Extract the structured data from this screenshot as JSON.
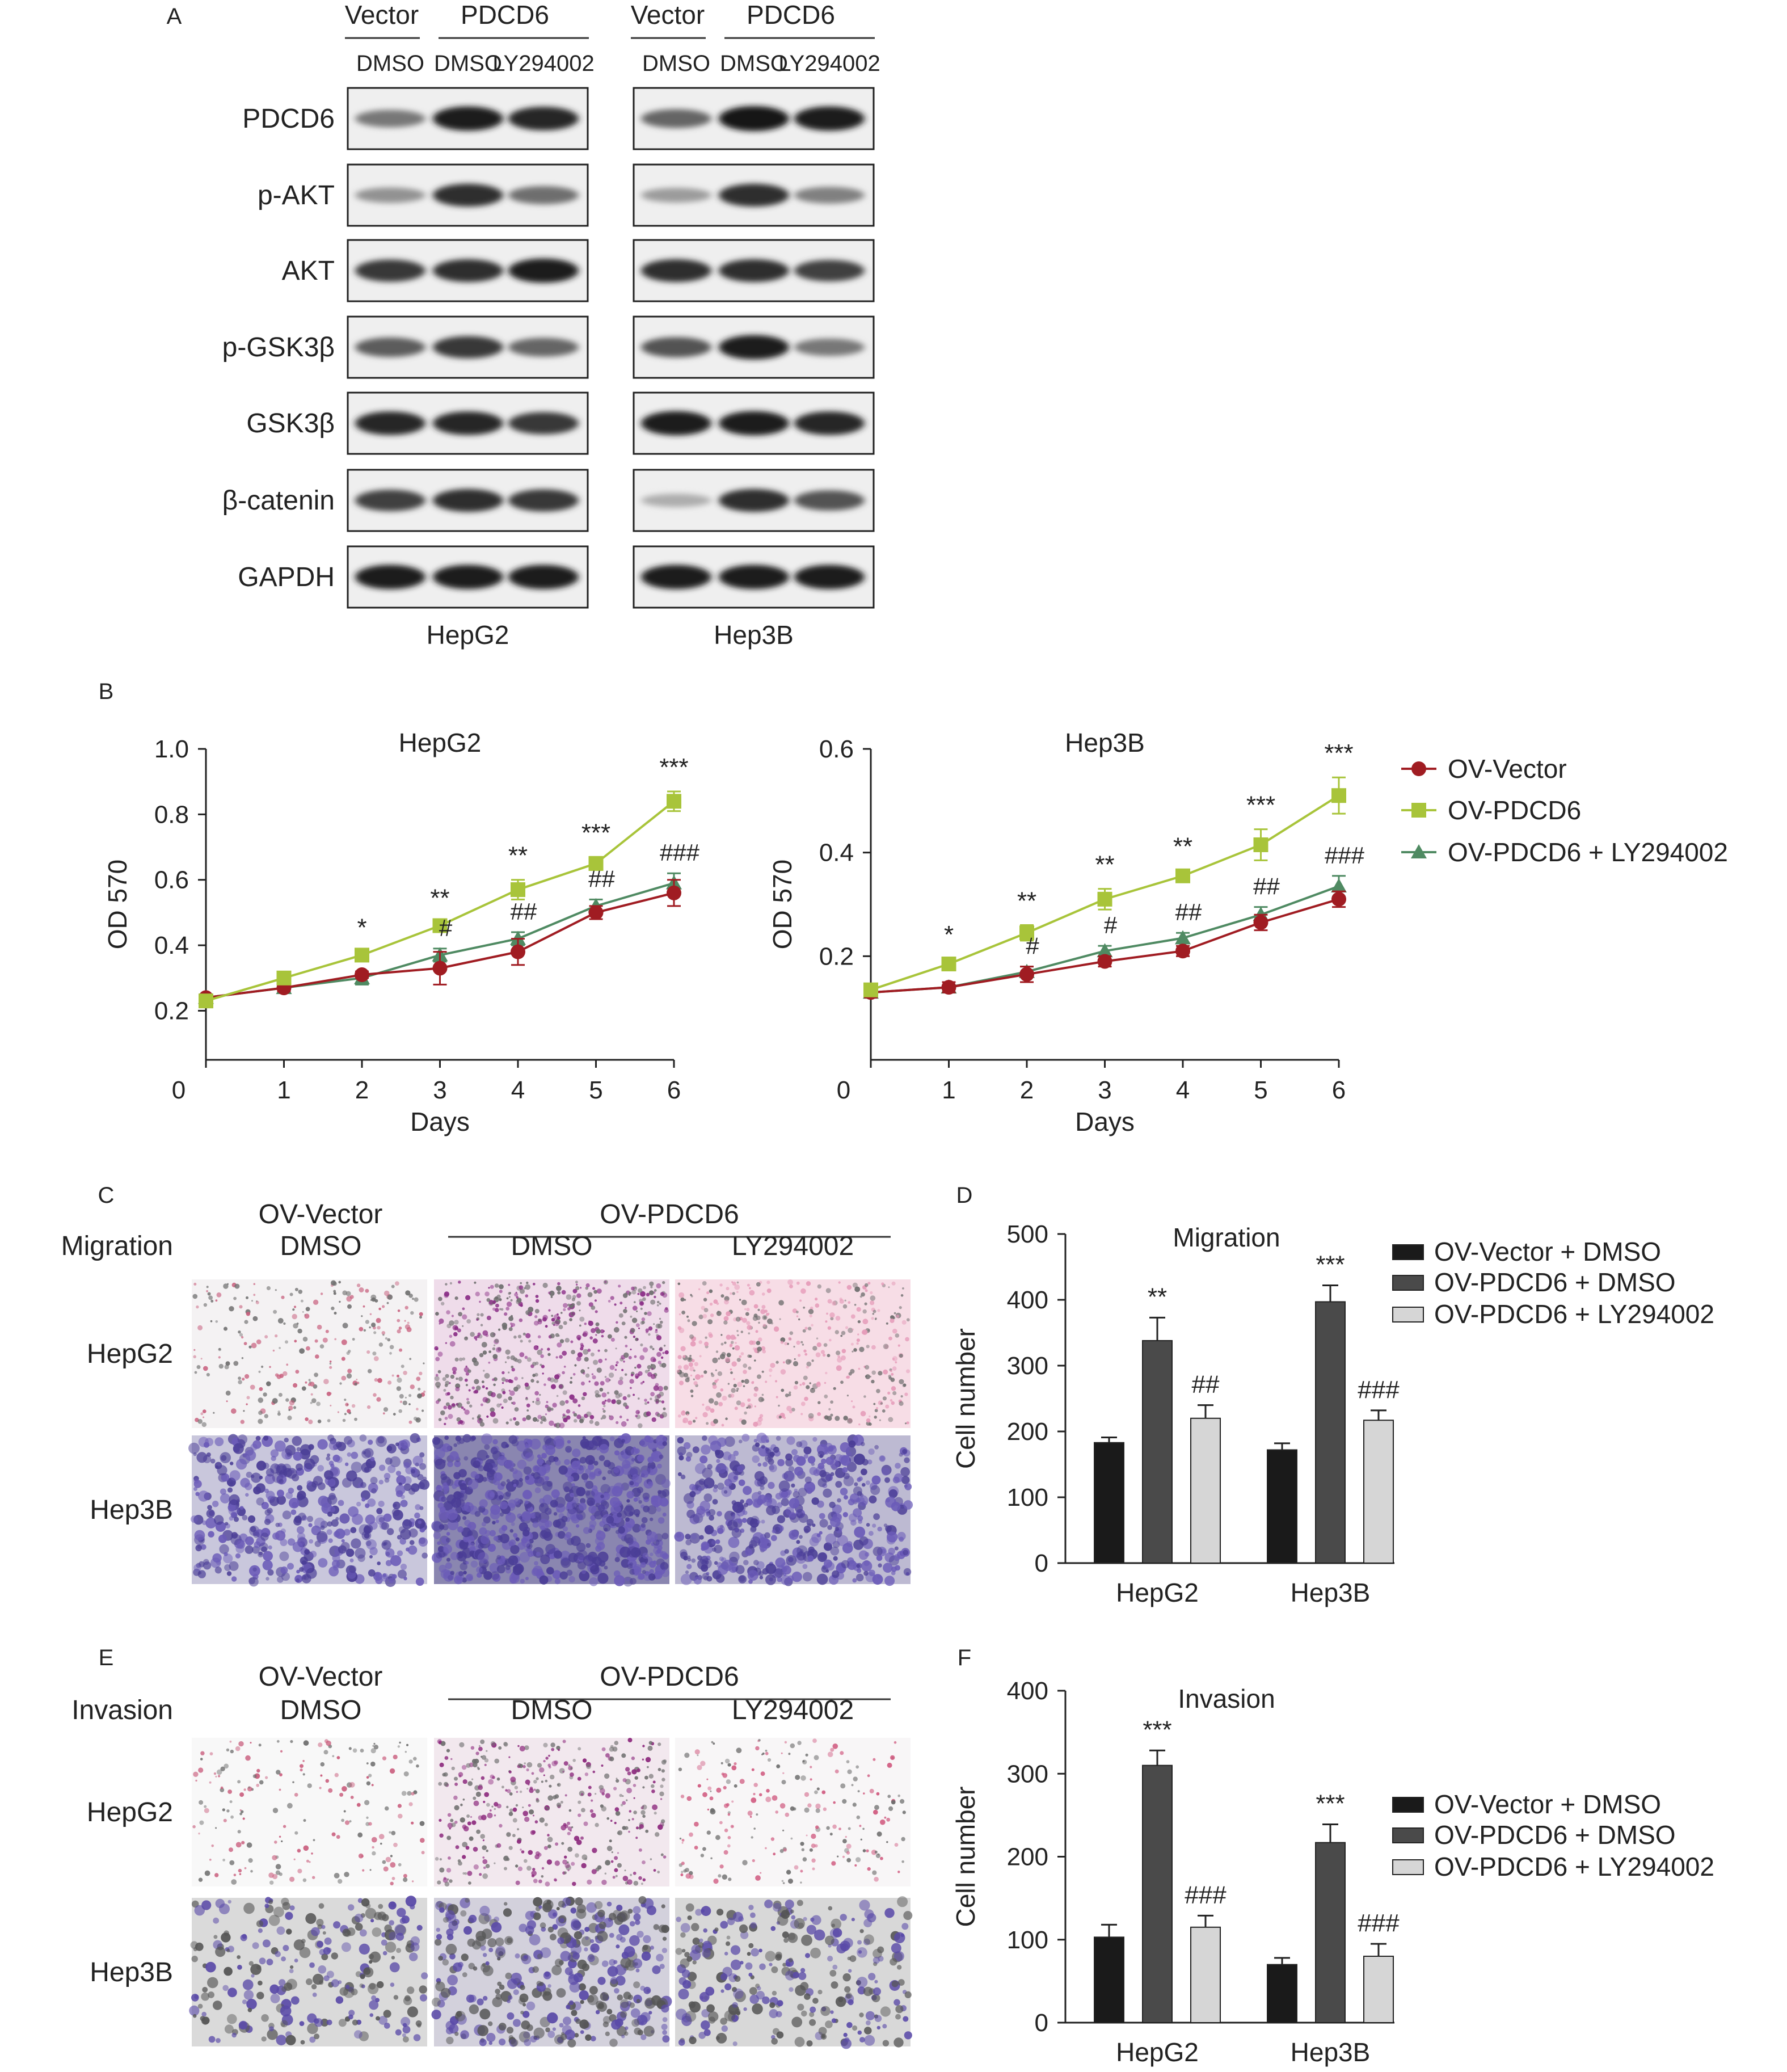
{
  "panels": {
    "A": "A",
    "B": "B",
    "C": "C",
    "D": "D",
    "E": "E",
    "F": "F"
  },
  "western": {
    "groups": [
      {
        "vector": "Vector",
        "pdcd6": "PDCD6",
        "lanes": [
          "DMSO",
          "DMSO",
          "LY294002"
        ],
        "cell": "HepG2",
        "intensity": {
          "PDCD6": [
            0.45,
            0.95,
            0.9
          ],
          "p-AKT": [
            0.3,
            0.85,
            0.5
          ],
          "AKT": [
            0.8,
            0.85,
            0.95
          ],
          "p-GSK3β": [
            0.6,
            0.8,
            0.55
          ],
          "GSK3β": [
            0.9,
            0.9,
            0.8
          ],
          "β-catenin": [
            0.75,
            0.85,
            0.8
          ],
          "GAPDH": [
            0.95,
            0.95,
            0.95
          ]
        }
      },
      {
        "vector": "Vector",
        "pdcd6": "PDCD6",
        "lanes": [
          "DMSO",
          "DMSO",
          "LY294002"
        ],
        "cell": "Hep3B",
        "intensity": {
          "PDCD6": [
            0.55,
            1.0,
            0.95
          ],
          "p-AKT": [
            0.25,
            0.85,
            0.4
          ],
          "AKT": [
            0.85,
            0.85,
            0.75
          ],
          "p-GSK3β": [
            0.65,
            0.95,
            0.45
          ],
          "GSK3β": [
            0.95,
            0.95,
            0.9
          ],
          "β-catenin": [
            0.15,
            0.85,
            0.65
          ],
          "GAPDH": [
            0.95,
            0.95,
            0.95
          ]
        }
      }
    ],
    "proteins": [
      "PDCD6",
      "p-AKT",
      "AKT",
      "p-GSK3β",
      "GSK3β",
      "β-catenin",
      "GAPDH"
    ]
  },
  "chart_data": [
    {
      "type": "line",
      "title": "HepG2",
      "xlabel": "Days",
      "ylabel": "OD 570",
      "x": [
        0,
        1,
        2,
        3,
        4,
        5,
        6
      ],
      "xticks": [
        "0",
        "1",
        "2",
        "3",
        "4",
        "5",
        "6"
      ],
      "yticks": [
        "0.2",
        "0.4",
        "0.6",
        "0.8",
        "1.0"
      ],
      "ylim": [
        0.05,
        1.0
      ],
      "series": [
        {
          "name": "OV-Vector",
          "color": "#a01c22",
          "marker": "circle",
          "values": [
            0.24,
            0.27,
            0.31,
            0.33,
            0.38,
            0.5,
            0.56
          ],
          "err": [
            0.01,
            0.01,
            0.01,
            0.05,
            0.04,
            0.02,
            0.04
          ]
        },
        {
          "name": "OV-PDCD6",
          "color": "#a8c43a",
          "marker": "square",
          "values": [
            0.23,
            0.3,
            0.37,
            0.46,
            0.57,
            0.65,
            0.84
          ],
          "err": [
            0.01,
            0.01,
            0.01,
            0.01,
            0.03,
            0.02,
            0.03
          ]
        },
        {
          "name": "OV-PDCD6 + LY294002",
          "color": "#4f8a62",
          "marker": "triangle",
          "values": [
            0.24,
            0.27,
            0.3,
            0.37,
            0.42,
            0.52,
            0.59
          ],
          "err": [
            0.01,
            0.01,
            0.02,
            0.02,
            0.02,
            0.02,
            0.03
          ]
        }
      ],
      "annotations": [
        {
          "x": 2,
          "star": "*",
          "hash": ""
        },
        {
          "x": 3,
          "star": "**",
          "hash": "#"
        },
        {
          "x": 4,
          "star": "**",
          "hash": "##"
        },
        {
          "x": 5,
          "star": "***",
          "hash": "##"
        },
        {
          "x": 6,
          "star": "***",
          "hash": "###"
        }
      ]
    },
    {
      "type": "line",
      "title": "Hep3B",
      "xlabel": "Days",
      "ylabel": "OD 570",
      "x": [
        0,
        1,
        2,
        3,
        4,
        5,
        6
      ],
      "xticks": [
        "0",
        "1",
        "2",
        "3",
        "4",
        "5",
        "6"
      ],
      "yticks": [
        "0.2",
        "0.4",
        "0.6"
      ],
      "ylim": [
        0.0,
        0.6
      ],
      "series": [
        {
          "name": "OV-Vector",
          "color": "#a01c22",
          "marker": "circle",
          "values": [
            0.13,
            0.14,
            0.165,
            0.19,
            0.21,
            0.265,
            0.31
          ],
          "err": [
            0.01,
            0.01,
            0.015,
            0.01,
            0.01,
            0.015,
            0.015
          ]
        },
        {
          "name": "OV-PDCD6",
          "color": "#a8c43a",
          "marker": "square",
          "values": [
            0.135,
            0.185,
            0.245,
            0.31,
            0.355,
            0.415,
            0.51
          ],
          "err": [
            0.01,
            0.01,
            0.015,
            0.02,
            0.01,
            0.03,
            0.035
          ]
        },
        {
          "name": "OV-PDCD6 + LY294002",
          "color": "#4f8a62",
          "marker": "triangle",
          "values": [
            0.13,
            0.14,
            0.17,
            0.21,
            0.235,
            0.28,
            0.335
          ],
          "err": [
            0.01,
            0.01,
            0.01,
            0.01,
            0.01,
            0.015,
            0.02
          ]
        }
      ],
      "annotations": [
        {
          "x": 1,
          "star": "*",
          "hash": ""
        },
        {
          "x": 2,
          "star": "**",
          "hash": "#"
        },
        {
          "x": 3,
          "star": "**",
          "hash": "#"
        },
        {
          "x": 4,
          "star": "**",
          "hash": "##"
        },
        {
          "x": 5,
          "star": "***",
          "hash": "##"
        },
        {
          "x": 6,
          "star": "***",
          "hash": "###"
        }
      ]
    },
    {
      "type": "bar",
      "title": "Migration",
      "ylabel": "Cell number",
      "categories": [
        "HepG2",
        "Hep3B"
      ],
      "yticks": [
        "0",
        "100",
        "200",
        "300",
        "400",
        "500"
      ],
      "ylim": [
        0,
        500
      ],
      "series": [
        {
          "name": "OV-Vector + DMSO",
          "color": "#1a1a1a",
          "values": [
            183,
            172
          ],
          "err": [
            8,
            10
          ]
        },
        {
          "name": "OV-PDCD6 + DMSO",
          "color": "#4a4a4a",
          "values": [
            338,
            397
          ],
          "err": [
            35,
            25
          ]
        },
        {
          "name": "OV-PDCD6 + LY294002",
          "color": "#d6d6d6",
          "values": [
            220,
            217
          ],
          "err": [
            20,
            15
          ]
        }
      ],
      "labels": [
        [
          "",
          "**",
          "##"
        ],
        [
          "",
          "***",
          "###"
        ]
      ]
    },
    {
      "type": "bar",
      "title": "Invasion",
      "ylabel": "Cell number",
      "categories": [
        "HepG2",
        "Hep3B"
      ],
      "yticks": [
        "0",
        "100",
        "200",
        "300",
        "400"
      ],
      "ylim": [
        0,
        400
      ],
      "series": [
        {
          "name": "OV-Vector + DMSO",
          "color": "#1a1a1a",
          "values": [
            103,
            70
          ],
          "err": [
            15,
            8
          ]
        },
        {
          "name": "OV-PDCD6 + DMSO",
          "color": "#4a4a4a",
          "values": [
            310,
            217
          ],
          "err": [
            18,
            22
          ]
        },
        {
          "name": "OV-PDCD6 + LY294002",
          "color": "#d6d6d6",
          "values": [
            115,
            80
          ],
          "err": [
            14,
            15
          ]
        }
      ],
      "labels": [
        [
          "",
          "***",
          "###"
        ],
        [
          "",
          "***",
          "###"
        ]
      ]
    }
  ],
  "transwell": {
    "C": {
      "assay": "Migration",
      "vector": "OV-Vector",
      "pdcd6": "OV-PDCD6",
      "lanes": [
        "DMSO",
        "DMSO",
        "LY294002"
      ],
      "rows": [
        "HepG2",
        "Hep3B"
      ]
    },
    "E": {
      "assay": "Invasion",
      "vector": "OV-Vector",
      "pdcd6": "OV-PDCD6",
      "lanes": [
        "DMSO",
        "DMSO",
        "LY294002"
      ],
      "rows": [
        "HepG2",
        "Hep3B"
      ]
    }
  }
}
